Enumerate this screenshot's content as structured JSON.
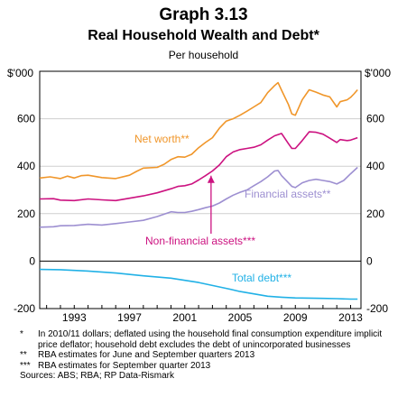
{
  "header": {
    "graph_number": "Graph 3.13",
    "title": "Real Household Wealth and Debt*",
    "subtitle": "Per household"
  },
  "footnotes": [
    {
      "mark": "*",
      "text": "In 2010/11 dollars; deflated using the household final consumption expenditure implicit price deflator; household debt excludes the debt of unincorporated businesses"
    },
    {
      "mark": "**",
      "text": "RBA estimates for June and September quarters 2013"
    },
    {
      "mark": "***",
      "text": "RBA estimates for September quarter 2013"
    }
  ],
  "sources": "Sources: ABS; RBA; RP Data-Rismark",
  "chart_data": {
    "type": "line",
    "y_unit_left": "$'000",
    "y_unit_right": "$'000",
    "ylim": [
      -200,
      800
    ],
    "y_ticks": [
      -200,
      0,
      200,
      400,
      600
    ],
    "y_tick_labels": [
      "-200",
      "0",
      "200",
      "400",
      "600"
    ],
    "xlim": [
      1990.5,
      2013.75
    ],
    "x_ticks": [
      1993,
      1997,
      2001,
      2005,
      2009,
      2013
    ],
    "x_tick_labels": [
      "1993",
      "1997",
      "2001",
      "2005",
      "2009",
      "2013"
    ],
    "grid": "horizontal",
    "series": [
      {
        "name": "Net worth**",
        "color": "#f0962a",
        "points": [
          [
            1990.5,
            350
          ],
          [
            1991.25,
            355
          ],
          [
            1992,
            348
          ],
          [
            1992.5,
            358
          ],
          [
            1993,
            350
          ],
          [
            1993.5,
            360
          ],
          [
            1994,
            362
          ],
          [
            1995,
            352
          ],
          [
            1996,
            348
          ],
          [
            1997,
            362
          ],
          [
            1997.5,
            378
          ],
          [
            1998,
            392
          ],
          [
            1999,
            395
          ],
          [
            1999.5,
            408
          ],
          [
            2000,
            428
          ],
          [
            2000.5,
            440
          ],
          [
            2001,
            438
          ],
          [
            2001.5,
            450
          ],
          [
            2002,
            478
          ],
          [
            2002.5,
            500
          ],
          [
            2003,
            520
          ],
          [
            2003.5,
            560
          ],
          [
            2004,
            590
          ],
          [
            2004.5,
            600
          ],
          [
            2005,
            615
          ],
          [
            2005.5,
            632
          ],
          [
            2006,
            650
          ],
          [
            2006.5,
            668
          ],
          [
            2007,
            710
          ],
          [
            2007.5,
            740
          ],
          [
            2007.75,
            752
          ],
          [
            2008,
            720
          ],
          [
            2008.5,
            660
          ],
          [
            2008.75,
            620
          ],
          [
            2009,
            615
          ],
          [
            2009.5,
            680
          ],
          [
            2010,
            722
          ],
          [
            2010.5,
            712
          ],
          [
            2011,
            700
          ],
          [
            2011.5,
            692
          ],
          [
            2012,
            650
          ],
          [
            2012.25,
            672
          ],
          [
            2012.75,
            680
          ],
          [
            2013,
            690
          ],
          [
            2013.25,
            705
          ],
          [
            2013.5,
            722
          ]
        ]
      },
      {
        "name": "Non-financial assets***",
        "color": "#cc1280",
        "points": [
          [
            1990.5,
            262
          ],
          [
            1991.5,
            263
          ],
          [
            1992,
            257
          ],
          [
            1993,
            255
          ],
          [
            1994,
            262
          ],
          [
            1995,
            258
          ],
          [
            1996,
            255
          ],
          [
            1997,
            265
          ],
          [
            1998,
            275
          ],
          [
            1999,
            288
          ],
          [
            2000,
            305
          ],
          [
            2000.5,
            315
          ],
          [
            2001,
            318
          ],
          [
            2001.5,
            325
          ],
          [
            2002,
            342
          ],
          [
            2002.5,
            360
          ],
          [
            2003,
            380
          ],
          [
            2003.5,
            405
          ],
          [
            2004,
            440
          ],
          [
            2004.5,
            460
          ],
          [
            2005,
            470
          ],
          [
            2005.5,
            475
          ],
          [
            2006,
            480
          ],
          [
            2006.5,
            490
          ],
          [
            2007,
            510
          ],
          [
            2007.5,
            528
          ],
          [
            2008,
            538
          ],
          [
            2008.5,
            495
          ],
          [
            2008.75,
            475
          ],
          [
            2009,
            475
          ],
          [
            2009.5,
            508
          ],
          [
            2010,
            545
          ],
          [
            2010.5,
            543
          ],
          [
            2011,
            535
          ],
          [
            2011.5,
            518
          ],
          [
            2012,
            500
          ],
          [
            2012.25,
            512
          ],
          [
            2012.75,
            508
          ],
          [
            2013,
            510
          ],
          [
            2013.5,
            520
          ]
        ]
      },
      {
        "name": "Financial assets**",
        "color": "#9d8fd1",
        "points": [
          [
            1990.5,
            143
          ],
          [
            1991.5,
            145
          ],
          [
            1992,
            149
          ],
          [
            1993,
            150
          ],
          [
            1994,
            155
          ],
          [
            1995,
            152
          ],
          [
            1996,
            158
          ],
          [
            1997,
            165
          ],
          [
            1998,
            172
          ],
          [
            1999,
            188
          ],
          [
            2000,
            208
          ],
          [
            2000.5,
            205
          ],
          [
            2001,
            205
          ],
          [
            2001.5,
            210
          ],
          [
            2002,
            217
          ],
          [
            2002.5,
            225
          ],
          [
            2003,
            232
          ],
          [
            2003.5,
            245
          ],
          [
            2004,
            262
          ],
          [
            2004.5,
            278
          ],
          [
            2005,
            290
          ],
          [
            2005.5,
            300
          ],
          [
            2006,
            318
          ],
          [
            2006.5,
            335
          ],
          [
            2007,
            355
          ],
          [
            2007.5,
            380
          ],
          [
            2007.75,
            382
          ],
          [
            2008,
            360
          ],
          [
            2008.5,
            330
          ],
          [
            2008.75,
            315
          ],
          [
            2009,
            310
          ],
          [
            2009.5,
            330
          ],
          [
            2010,
            340
          ],
          [
            2010.5,
            345
          ],
          [
            2011,
            340
          ],
          [
            2011.5,
            335
          ],
          [
            2012,
            325
          ],
          [
            2012.5,
            340
          ],
          [
            2013,
            368
          ],
          [
            2013.5,
            395
          ]
        ]
      },
      {
        "name": "Total debt***",
        "color": "#21b1e6",
        "points": [
          [
            1990.5,
            -35
          ],
          [
            1992,
            -36
          ],
          [
            1994,
            -42
          ],
          [
            1996,
            -50
          ],
          [
            1998,
            -62
          ],
          [
            2000,
            -72
          ],
          [
            2002,
            -90
          ],
          [
            2004,
            -115
          ],
          [
            2005,
            -128
          ],
          [
            2006,
            -138
          ],
          [
            2007,
            -148
          ],
          [
            2008,
            -152
          ],
          [
            2009,
            -155
          ],
          [
            2010,
            -156
          ],
          [
            2011,
            -157
          ],
          [
            2012,
            -158
          ],
          [
            2013,
            -160
          ],
          [
            2013.5,
            -160
          ]
        ]
      }
    ],
    "annotations": [
      {
        "text": "Net worth**",
        "color": "#f0962a"
      },
      {
        "text": "Financial assets**",
        "color": "#9d8fd1"
      },
      {
        "text": "Non-financial assets***",
        "color": "#cc1280"
      },
      {
        "text": "Total debt***",
        "color": "#21b1e6"
      }
    ]
  }
}
